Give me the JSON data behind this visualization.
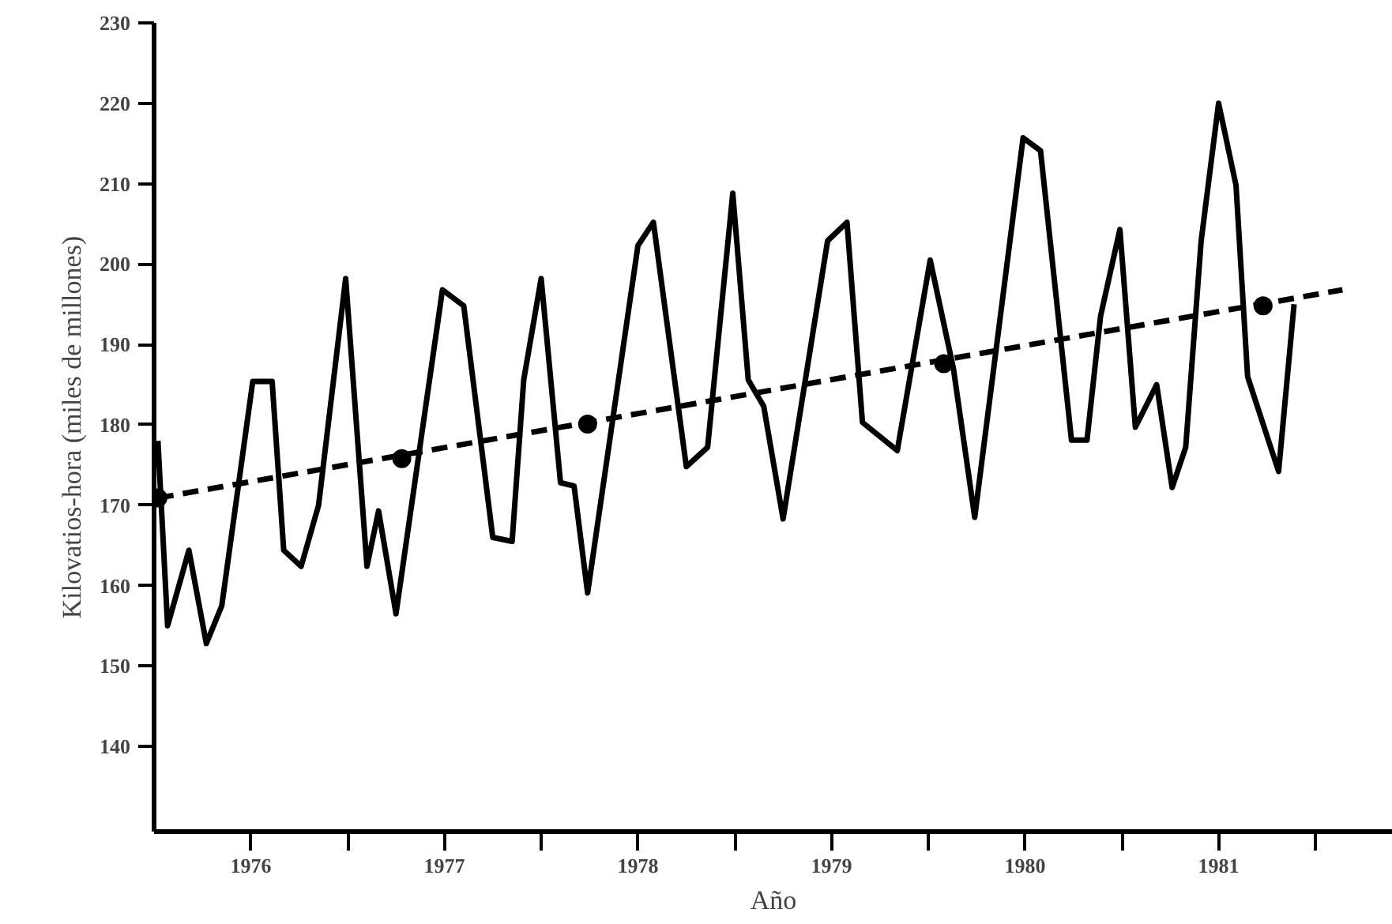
{
  "chart_data": {
    "type": "line",
    "xlabel": "Año",
    "ylabel": "Kilovatios-hora (miles de millones)",
    "xlim": [
      1976,
      1982.4
    ],
    "ylim": [
      129.4,
      230
    ],
    "xticks": [
      {
        "value": 1976.5,
        "label": "1976"
      },
      {
        "value": 1977,
        "label": null
      },
      {
        "value": 1977.5,
        "label": "1977"
      },
      {
        "value": 1978,
        "label": null
      },
      {
        "value": 1978.5,
        "label": "1978"
      },
      {
        "value": 1979,
        "label": null
      },
      {
        "value": 1979.5,
        "label": "1979"
      },
      {
        "value": 1980,
        "label": null
      },
      {
        "value": 1980.5,
        "label": "1980"
      },
      {
        "value": 1981,
        "label": null
      },
      {
        "value": 1981.5,
        "label": "1981"
      },
      {
        "value": 1982,
        "label": null
      }
    ],
    "yticks": [
      140,
      150,
      160,
      170,
      180,
      190,
      200,
      210,
      220,
      230
    ],
    "grid": false,
    "series": [
      {
        "color": "#000000",
        "line_style": "solid",
        "marker": "none",
        "x": [
          1976.02,
          1976.07,
          1976.18,
          1976.27,
          1976.35,
          1976.51,
          1976.61,
          1976.67,
          1976.76,
          1976.85,
          1976.99,
          1977.1,
          1977.16,
          1977.25,
          1977.49,
          1977.6,
          1977.75,
          1977.85,
          1977.91,
          1978.0,
          1978.1,
          1978.17,
          1978.24,
          1978.5,
          1978.58,
          1978.75,
          1978.86,
          1978.99,
          1979.07,
          1979.15,
          1979.25,
          1979.48,
          1979.58,
          1979.66,
          1979.84,
          1980.01,
          1980.13,
          1980.24,
          1980.49,
          1980.58,
          1980.74,
          1980.82,
          1980.89,
          1980.99,
          1981.07,
          1981.18,
          1981.26,
          1981.33,
          1981.41,
          1981.5,
          1981.59,
          1981.65,
          1981.81,
          1981.89
        ],
        "values": [
          178,
          155,
          164.4,
          152.8,
          157.5,
          185.4,
          185.4,
          164.4,
          162.4,
          170,
          198.2,
          162.4,
          169.3,
          156.5,
          196.8,
          194.8,
          166,
          165.5,
          185.6,
          198.2,
          172.8,
          172.4,
          159.1,
          202.3,
          205.2,
          174.8,
          177.2,
          208.8,
          185.6,
          182.3,
          168.3,
          202.9,
          205.2,
          180.3,
          176.8,
          200.5,
          187,
          168.5,
          215.7,
          214.1,
          178.1,
          178.1,
          193.5,
          204.3,
          179.7,
          185,
          172.2,
          177.2,
          202.9,
          220,
          209.8,
          186,
          174.2,
          195
        ]
      },
      {
        "color": "#000000",
        "line_style": "dashed",
        "marker": "none",
        "x": [
          1976.02,
          1982.14
        ],
        "values": [
          170.9,
          196.8
        ]
      },
      {
        "type": "scatter",
        "color": "#000000",
        "marker": "circle",
        "x": [
          1976.02,
          1977.28,
          1978.24,
          1980.08,
          1981.73
        ],
        "values": [
          170.9,
          175.8,
          180.1,
          187.6,
          194.8
        ]
      }
    ]
  }
}
